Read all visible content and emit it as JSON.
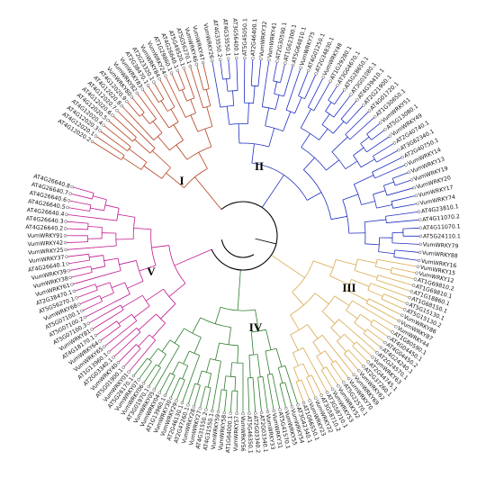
{
  "tree": {
    "clades": [
      {
        "id": "I",
        "label": "I",
        "color": "#b5401f",
        "leaves": [
          "AT4G12020.2",
          "AT4G12020.1",
          "AT4G12020.3",
          "AT4G12020.4",
          "AT4G12020.5",
          "AT4G12020.6",
          "AT4G12020.7",
          "AT4G12020.8",
          "AT4G12020.9",
          "VumWRKY80",
          "VumWRKY82",
          "VumWRKY83",
          "AT2G38470.1",
          "AT2G23320.1",
          "VumWRKY84",
          "VumWRKY24",
          "AT1G29860.1",
          "AT4G26640.1",
          "AT5G49520.1",
          "AT5G56270.1",
          "VumWRKY46",
          "VumWRKY47"
        ]
      },
      {
        "id": "II",
        "label": "II",
        "color": "#1f2fc0",
        "leaves": [
          "VumWRKY26",
          "AT4G33550.2",
          "AT4G33550.1",
          "AT3G56400.1",
          "AT5G45050.1",
          "AT2G46400.1",
          "VumWRKY32",
          "VumWRKY41",
          "AT2G30590.1",
          "AT1G62300.1",
          "AT5G64810.1",
          "VumWRKY75",
          "AT4G01250.1",
          "AT2G34830.1",
          "VumWRKY48",
          "AT1G29280.1",
          "AT3G04670.1",
          "AT5G28650.1",
          "AT3G01080.1",
          "AT4G39410.1",
          "AT2G21900.1",
          "AT4G01720.1",
          "AT1G30650.1",
          "VumWRKY51",
          "AT5G13080.1",
          "VumWRKY49",
          "AT2G40740.1",
          "AT3G62340.1",
          "AT2G40750.1",
          "VumWRKY14",
          "VumWRKY13",
          "VumWRKY19",
          "VumWRKY20",
          "VumWRKY17",
          "VumWRKY74",
          "AT4G23810.1",
          "AT4G11070.2",
          "AT4G11070.1",
          "AT5G24110.1",
          "VumWRKY79",
          "VumWRKY88",
          "VumWRKY16"
        ]
      },
      {
        "id": "III",
        "label": "III",
        "color": "#d9a84a",
        "leaves": [
          "VumWRKY15",
          "VumWRKY12",
          "AT1G69810.2",
          "AT1G69810.1",
          "AT1G18860.1",
          "AT1G68150.1",
          "AT5G15130.1",
          "AT5G15130.2",
          "VumWRKY86",
          "VumWRKY87",
          "VumWRKY44",
          "AT1G80590.1",
          "AT4G04450.1",
          "AT4G04450.2",
          "AT4G24240.1",
          "AT2G24570.1",
          "VumWRKY63",
          "AT2G44745.1",
          "AT2G37260.1",
          "VumWRKY62",
          "VumWRKY69",
          "VumWRKY70",
          "AT5G22570.1",
          "VumWRKY52",
          "VumWRKY53",
          "AT3G58710.1",
          "AT3G58710.2",
          "VumWRKY22",
          "VumWRKY23",
          "AT1G66550.1"
        ]
      },
      {
        "id": "IV",
        "label": "IV",
        "color": "#2e7d2e",
        "leaves": [
          "AT3G42340.1",
          "VumWRKY54",
          "VumWRKY55",
          "AT5G41570.1",
          "VumWRKY31",
          "VumWRKY33",
          "AT2G03340.1",
          "AT2G03340.2",
          "AT5G46350.1",
          "VumWRKY56",
          "VumWRKY57",
          "AT1G64000.1",
          "VumWRKY58",
          "VumWRKY59",
          "AT4G31550.1",
          "AT4G31550.2",
          "VumWRKY27",
          "VumWRKY28",
          "AT2G47260.1",
          "AT2G46130.1",
          "VumWRKY29",
          "VumWRKY30",
          "AT1G13960.1",
          "VumWRKY04",
          "VumWRKY05",
          "AT3G01970.1",
          "VumWRKY06",
          "VumWRKY07",
          "AT5G26170.1"
        ]
      },
      {
        "id": "V",
        "label": "V",
        "color": "#c2188f",
        "leaves": [
          "VumWRKY01",
          "AT5G01900.1",
          "VumWRKY40",
          "AT2G03340.1",
          "AT1G13960.1",
          "VumWRKY65",
          "VumWRKY64",
          "AT4G18170.1",
          "VumWRKY81",
          "AT5G07100.3",
          "AT5G07100.2",
          "AT5G07100.1",
          "VumWRKY68",
          "AT5G56270.1",
          "AT2G38470.1",
          "VumWRKY61",
          "VumWRKY38",
          "VumWRKY39",
          "AT4G26640.1",
          "VumWRKY37",
          "VumWRKY25",
          "VumWRKY42",
          "VumWRKY91",
          "AT4G26640.2",
          "AT4G26640.3",
          "AT4G26640.4",
          "AT4G26640.5",
          "AT4G26640.6",
          "AT4G26640.7",
          "AT4G26640.8"
        ]
      }
    ]
  }
}
